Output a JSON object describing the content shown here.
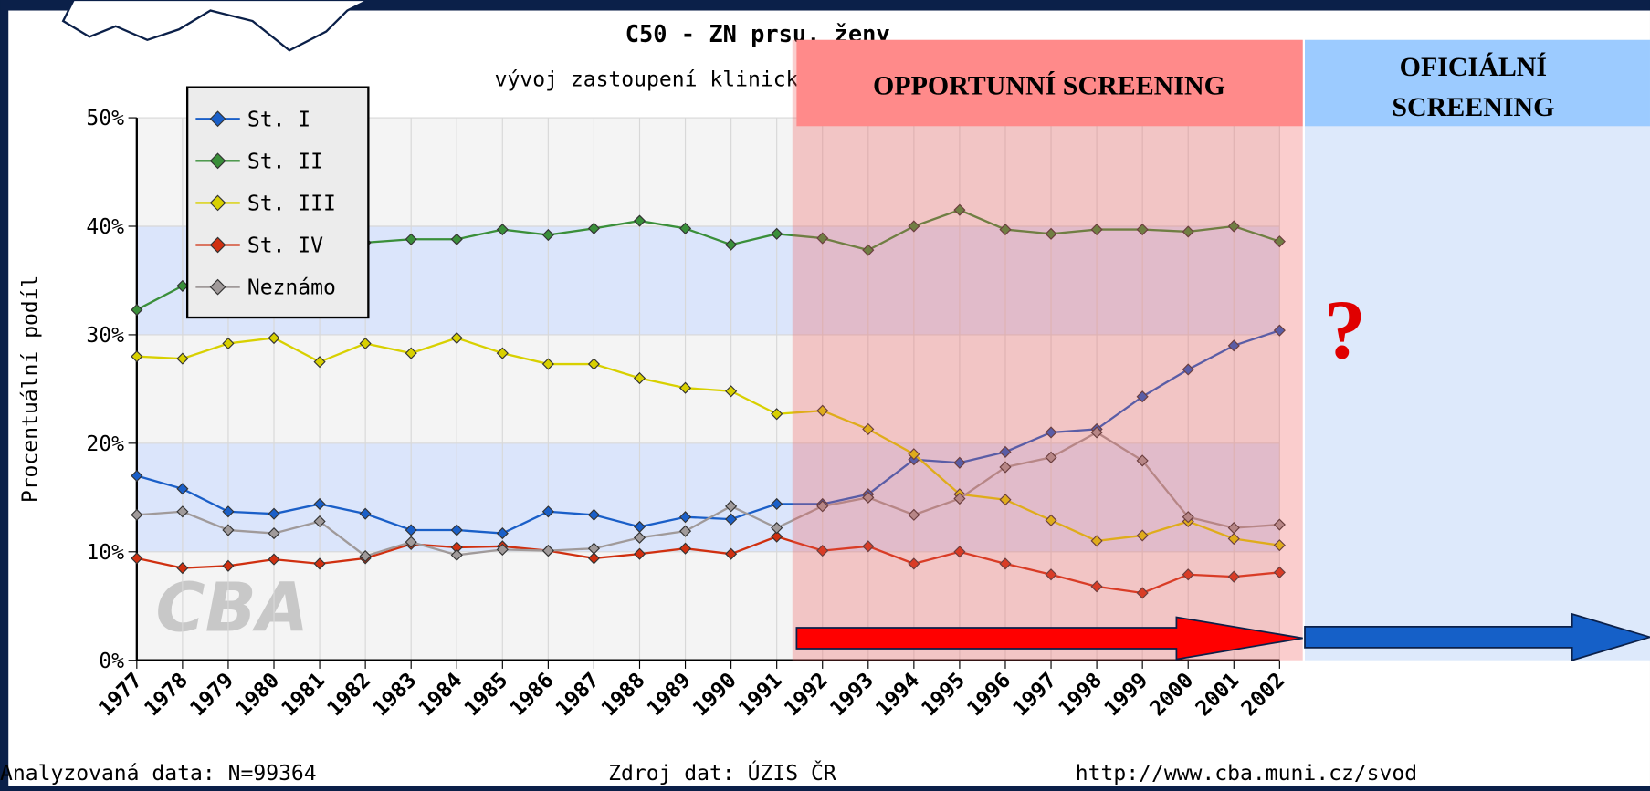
{
  "chart_data": {
    "type": "line",
    "title": "C50 - ZN prsu, ženy",
    "subtitle": "vývoj zastoupení klinických stadií",
    "ylabel": "Procentuální podíl",
    "categories": [
      "1977",
      "1978",
      "1979",
      "1980",
      "1981",
      "1982",
      "1983",
      "1984",
      "1985",
      "1986",
      "1987",
      "1988",
      "1989",
      "1990",
      "1991",
      "1992",
      "1993",
      "1994",
      "1995",
      "1996",
      "1997",
      "1998",
      "1999",
      "2000",
      "2001",
      "2002"
    ],
    "series": [
      {
        "name": "St. I",
        "color": "#1a5fc8",
        "values": [
          17,
          15.8,
          13.7,
          13.5,
          14.4,
          13.5,
          12,
          12,
          11.7,
          13.7,
          13.4,
          12.3,
          13.2,
          13,
          14.4,
          14.4,
          15.3,
          18.5,
          18.2,
          19.2,
          21,
          21.3,
          24.3,
          26.8,
          29,
          30.4
        ]
      },
      {
        "name": "St. II",
        "color": "#3a8f3a",
        "values": [
          32.3,
          34.5,
          36,
          37,
          38,
          38.5,
          38.8,
          38.8,
          39.7,
          39.2,
          39.8,
          40.5,
          39.8,
          38.3,
          39.3,
          38.9,
          37.8,
          40,
          41.5,
          39.7,
          39.3,
          39.7,
          39.7,
          39.5,
          40,
          38.6
        ]
      },
      {
        "name": "St. III",
        "color": "#d8d000",
        "values": [
          28,
          27.8,
          29.2,
          29.7,
          27.5,
          29.2,
          28.3,
          29.7,
          28.3,
          27.3,
          27.3,
          26,
          25.1,
          24.8,
          22.7,
          23,
          21.3,
          19,
          15.3,
          14.8,
          12.9,
          11,
          11.5,
          12.8,
          11.2,
          10.6
        ]
      },
      {
        "name": "St. IV",
        "color": "#d03010",
        "values": [
          9.4,
          8.5,
          8.7,
          9.3,
          8.9,
          9.4,
          10.7,
          10.4,
          10.5,
          10.1,
          9.4,
          9.8,
          10.3,
          9.8,
          11.4,
          10.1,
          10.5,
          8.9,
          10,
          8.9,
          7.9,
          6.8,
          6.2,
          7.9,
          7.7,
          8.1
        ]
      },
      {
        "name": "Neznámo",
        "color": "#a09a9a",
        "values": [
          13.4,
          13.7,
          12,
          11.7,
          12.8,
          9.6,
          10.9,
          9.7,
          10.2,
          10.1,
          10.3,
          11.3,
          11.9,
          14.2,
          12.2,
          14.2,
          15,
          13.4,
          14.9,
          17.8,
          18.7,
          21,
          18.4,
          13.2,
          12.2,
          12.5
        ]
      }
    ],
    "ylim": [
      0,
      50
    ],
    "yticks": [
      {
        "value": 0,
        "label": "0%"
      },
      {
        "value": 10,
        "label": "10%"
      },
      {
        "value": 20,
        "label": "20%"
      },
      {
        "value": 30,
        "label": "30%"
      },
      {
        "value": 40,
        "label": "40%"
      },
      {
        "value": 50,
        "label": "50%"
      }
    ],
    "grid": true,
    "legend": "upper left",
    "annotations": {
      "opportunistic": "OPPORTUNNÍ SCREENING",
      "official": [
        "OFICIÁLNÍ",
        "SCREENING"
      ],
      "question": "?"
    },
    "watermark": "CBA",
    "footer": {
      "left": "Analyzovaná data: N=99364",
      "center": "Zdroj dat: ÚZIS ČR",
      "right": "http://www.cba.muni.cz/svod"
    }
  }
}
